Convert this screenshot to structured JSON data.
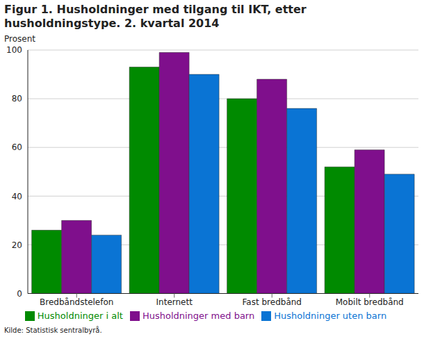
{
  "chart_data": {
    "type": "bar",
    "title": "Figur 1. Husholdninger med tilgang til IKT, etter husholdningstype. 2. kvartal 2014",
    "y_label": "Prosent",
    "source": "Kilde: Statistisk sentralbyrå.",
    "categories": [
      "Bredbåndstelefon",
      "Internett",
      "Fast bredbånd",
      "Mobilt bredbånd"
    ],
    "series": [
      {
        "name": "Husholdninger i alt",
        "color": "#008a00",
        "values": [
          26,
          93,
          80,
          52
        ]
      },
      {
        "name": "Husholdninger med barn",
        "color": "#7f0f8c",
        "values": [
          30,
          99,
          88,
          59
        ]
      },
      {
        "name": "Husholdninger uten barn",
        "color": "#0a74d4",
        "values": [
          24,
          90,
          76,
          49
        ]
      }
    ],
    "ylim": [
      0,
      100
    ],
    "yticks": [
      0,
      20,
      40,
      60,
      80,
      100
    ],
    "grid": true,
    "legend": "bottom"
  }
}
